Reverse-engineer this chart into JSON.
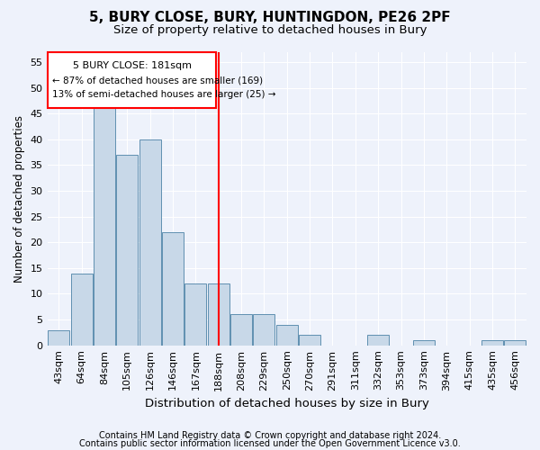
{
  "title1": "5, BURY CLOSE, BURY, HUNTINGDON, PE26 2PF",
  "title2": "Size of property relative to detached houses in Bury",
  "xlabel": "Distribution of detached houses by size in Bury",
  "ylabel": "Number of detached properties",
  "categories": [
    "43sqm",
    "64sqm",
    "84sqm",
    "105sqm",
    "126sqm",
    "146sqm",
    "167sqm",
    "188sqm",
    "208sqm",
    "229sqm",
    "250sqm",
    "270sqm",
    "291sqm",
    "311sqm",
    "332sqm",
    "353sqm",
    "373sqm",
    "394sqm",
    "415sqm",
    "435sqm",
    "456sqm"
  ],
  "values": [
    3,
    14,
    46,
    37,
    40,
    22,
    12,
    12,
    6,
    6,
    4,
    2,
    0,
    0,
    2,
    0,
    1,
    0,
    0,
    1,
    1
  ],
  "bar_color": "#c8d8e8",
  "bar_edge_color": "#6090b0",
  "red_line_index": 7,
  "annotation_title": "5 BURY CLOSE: 181sqm",
  "annotation_line1": "← 87% of detached houses are smaller (169)",
  "annotation_line2": "13% of semi-detached houses are larger (25) →",
  "footer1": "Contains HM Land Registry data © Crown copyright and database right 2024.",
  "footer2": "Contains public sector information licensed under the Open Government Licence v3.0.",
  "ylim": [
    0,
    57
  ],
  "yticks": [
    0,
    5,
    10,
    15,
    20,
    25,
    30,
    35,
    40,
    45,
    50,
    55
  ],
  "background_color": "#eef2fb",
  "plot_bg_color": "#eef2fb",
  "grid_color": "#ffffff",
  "title1_fontsize": 11,
  "title2_fontsize": 9.5,
  "xlabel_fontsize": 9.5,
  "ylabel_fontsize": 8.5,
  "tick_fontsize": 8,
  "annotation_fontsize": 8,
  "footer_fontsize": 7
}
